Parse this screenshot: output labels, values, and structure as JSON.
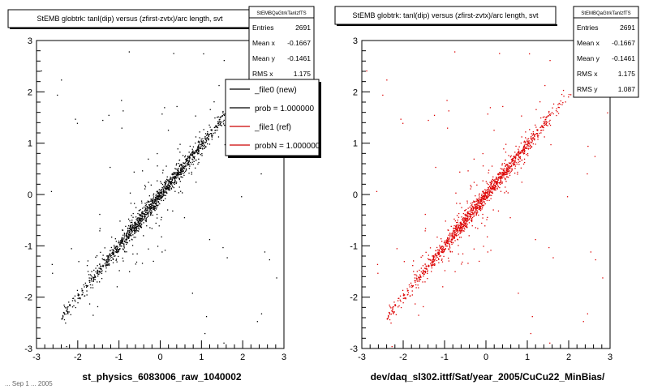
{
  "chart_data": [
    {
      "type": "scatter",
      "title": "StEMB globtrk: tanl(dip) versus (zfirst-zvtx)/arc length, svt",
      "xlabel": "st_physics_6083006_raw_1040002",
      "ylabel": "",
      "xlim": [
        -3,
        3
      ],
      "ylim": [
        -3,
        3
      ],
      "x_ticks": [
        "-3",
        "-2",
        "-1",
        "0",
        "1",
        "2",
        "3"
      ],
      "y_ticks": [
        "-3",
        "-2",
        "-1",
        "0",
        "1",
        "2",
        "3"
      ],
      "color": "#000000",
      "stats": {
        "name": "StEMBQaGtrkTanlzfTS",
        "rows": [
          {
            "label": "Entries",
            "value": "2691"
          },
          {
            "label": "Mean x",
            "value": "-0.1667"
          },
          {
            "label": "Mean y",
            "value": "-0.1461"
          },
          {
            "label": "RMS x",
            "value": "1.175"
          }
        ]
      },
      "legend": {
        "placement": "top-right",
        "entries": [
          {
            "label": "_file0 (new)",
            "color": "#000000"
          },
          {
            "label": "prob = 1.000000",
            "color": "#000000"
          },
          {
            "label": "_file1 (ref)",
            "color": "#cc0000"
          },
          {
            "label": "probN = 1.000000",
            "color": "#cc0000"
          }
        ]
      }
    },
    {
      "type": "scatter",
      "title": "StEMB globtrk: tanl(dip) versus (zfirst-zvtx)/arc length, svt",
      "xlabel": "dev/daq_sl302.ittf/Sat/year_2005/CuCu22_MinBias/",
      "ylabel": "",
      "xlim": [
        -3,
        3
      ],
      "ylim": [
        -3,
        3
      ],
      "x_ticks": [
        "-3",
        "-2",
        "-1",
        "0",
        "1",
        "2",
        "3"
      ],
      "y_ticks": [
        "-3",
        "-2",
        "-1",
        "0",
        "1",
        "2",
        "3"
      ],
      "color": "#dd0000",
      "stats": {
        "name": "StEMBQaGtrkTanlzfTS",
        "rows": [
          {
            "label": "Entries",
            "value": "2691"
          },
          {
            "label": "Mean x",
            "value": "-0.1667"
          },
          {
            "label": "Mean y",
            "value": "-0.1461"
          },
          {
            "label": "RMS x",
            "value": "1.175"
          },
          {
            "label": "RMS y",
            "value": "1.087"
          }
        ]
      }
    }
  ],
  "footer": "... Sep 1 ... 2005"
}
